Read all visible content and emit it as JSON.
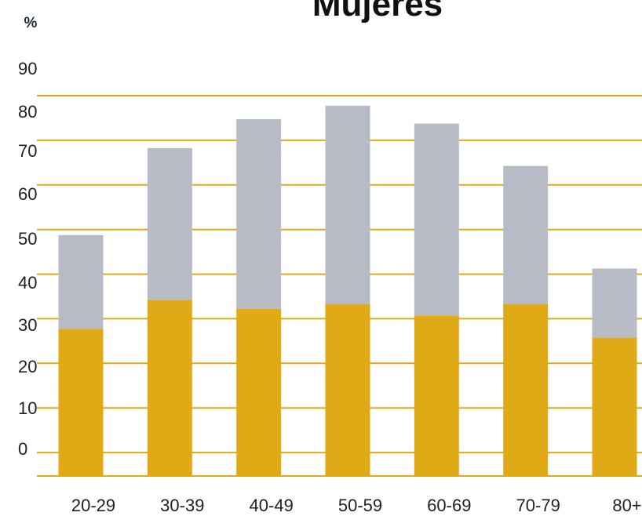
{
  "chart_data": {
    "type": "bar",
    "stacked": true,
    "title": "Mujeres",
    "unit_label": "%",
    "categories": [
      "20-29",
      "30-39",
      "40-49",
      "50-59",
      "60-69",
      "70-79",
      "80+"
    ],
    "y_ticks": [
      "90",
      "80",
      "70",
      "60",
      "50",
      "40",
      "30",
      "20",
      "10",
      "0"
    ],
    "series": [
      {
        "values": [
          33,
          39.5,
          37.5,
          38.5,
          36,
          38.5,
          31
        ],
        "color": "#DFAA16"
      },
      {
        "values": [
          21,
          34,
          42.5,
          44.5,
          43,
          31,
          15.5
        ],
        "color": "#B7BBC6"
      }
    ],
    "ylim": [
      0,
      90
    ],
    "grid": true,
    "grid_color": "#DFAA16",
    "legend": false
  }
}
